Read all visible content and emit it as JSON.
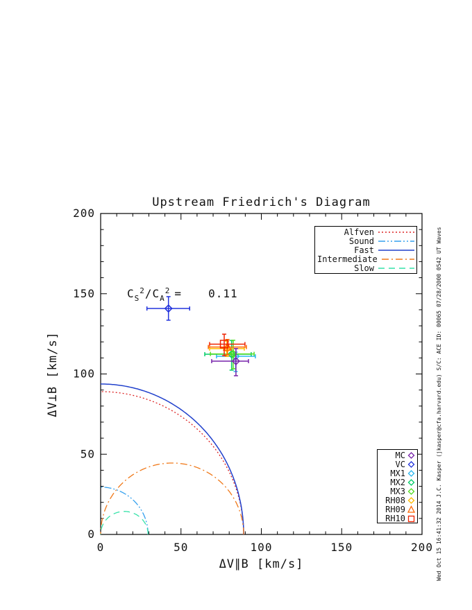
{
  "chart_data": {
    "type": "scatter",
    "title": "Upstream Friedrich's Diagram",
    "xlabel": "ΔV∥B [km/s]",
    "ylabel": "ΔV⊥B [km/s]",
    "xlim": [
      0,
      200
    ],
    "ylim": [
      0,
      200
    ],
    "x_ticks": [
      "0",
      "50",
      "100",
      "150",
      "200"
    ],
    "y_ticks": [
      "0",
      "50",
      "100",
      "150",
      "200"
    ],
    "x_tick_values": [
      0,
      50,
      100,
      150,
      200
    ],
    "y_tick_values": [
      0,
      50,
      100,
      150,
      200
    ],
    "minor_tick_step": 10,
    "grid": false,
    "legend_position": "upper-right and lower-right",
    "annotation": {
      "c1": "C",
      "sub1": "S",
      "sup1": "2",
      "slash": "/",
      "c2": "C",
      "sub2": "A",
      "sup2": "2",
      "eq": "=",
      "value": "0.11"
    },
    "wave_speeds": {
      "alfven_speed_km_s": 89,
      "sound_speed_km_s": 29.5,
      "ratio_cs2_ca2": 0.11
    },
    "mode_curves": [
      {
        "label": "Alfven",
        "mode": "alfven",
        "color": "#dd2222",
        "dash": "2 3",
        "width": 1.3
      },
      {
        "label": "Sound",
        "mode": "sound",
        "color": "#33a0ee",
        "dash": "10 3 2 3 2 3",
        "width": 1.3
      },
      {
        "label": "Fast",
        "mode": "fast",
        "color": "#2040cc",
        "dash": "",
        "width": 1.5
      },
      {
        "label": "Intermediate",
        "mode": "intermediate",
        "color": "#f07818",
        "dash": "10 4 2 4",
        "width": 1.3
      },
      {
        "label": "Slow",
        "mode": "slow",
        "color": "#35e2a8",
        "dash": "9 6",
        "width": 1.3
      }
    ],
    "points": [
      {
        "label": "MC",
        "marker": "diamond",
        "color": "#7722aa",
        "x": 84.2,
        "y": 108.0,
        "xlo": 69.1,
        "xhi": 92.0,
        "ylo": 98.9,
        "yhi": 115.8,
        "z": 8
      },
      {
        "label": "VC",
        "marker": "diamond",
        "color": "#2233dd",
        "x": 42.2,
        "y": 140.8,
        "xlo": 28.8,
        "xhi": 55.4,
        "ylo": 133.5,
        "yhi": 148.2,
        "z": 1
      },
      {
        "label": "MX1",
        "marker": "diamond",
        "color": "#2ab8f0",
        "x": 84.0,
        "y": 111.0,
        "xlo": 72.1,
        "xhi": 96.3,
        "ylo": 101.5,
        "yhi": 113.6,
        "z": 2
      },
      {
        "label": "MX2",
        "marker": "diamond",
        "color": "#00cc66",
        "x": 81.5,
        "y": 112.3,
        "xlo": 64.8,
        "xhi": 93.7,
        "ylo": 102.4,
        "yhi": 120.9,
        "z": 3
      },
      {
        "label": "MX3",
        "marker": "diamond",
        "color": "#55dd22",
        "x": 82.5,
        "y": 112.5,
        "xlo": 68.3,
        "xhi": 95.5,
        "ylo": 103.3,
        "yhi": 121.0,
        "z": 4
      },
      {
        "label": "RH08",
        "marker": "diamond",
        "color": "#ffbb00",
        "x": 78.6,
        "y": 115.8,
        "xlo": 67.8,
        "xhi": 89.4,
        "ylo": 111.0,
        "yhi": 120.5,
        "z": 5
      },
      {
        "label": "RH09",
        "marker": "triangle",
        "color": "#ff6600",
        "x": 78.9,
        "y": 116.8,
        "xlo": 67.0,
        "xhi": 90.7,
        "ylo": 112.0,
        "yhi": 121.5,
        "z": 6
      },
      {
        "label": "RH10",
        "marker": "square",
        "color": "#ee2200",
        "x": 76.9,
        "y": 118.6,
        "xlo": 67.8,
        "xhi": 89.8,
        "ylo": 111.4,
        "yhi": 124.8,
        "z": 7
      }
    ]
  },
  "sidebar": {
    "credit_text": "Wed Oct 15 16:41:32 2014   J.C. Kasper (jkasper@cfa.harvard.edu)   S/C: ACE ID: 00065 07/28/2000  0542 UT Waves"
  }
}
